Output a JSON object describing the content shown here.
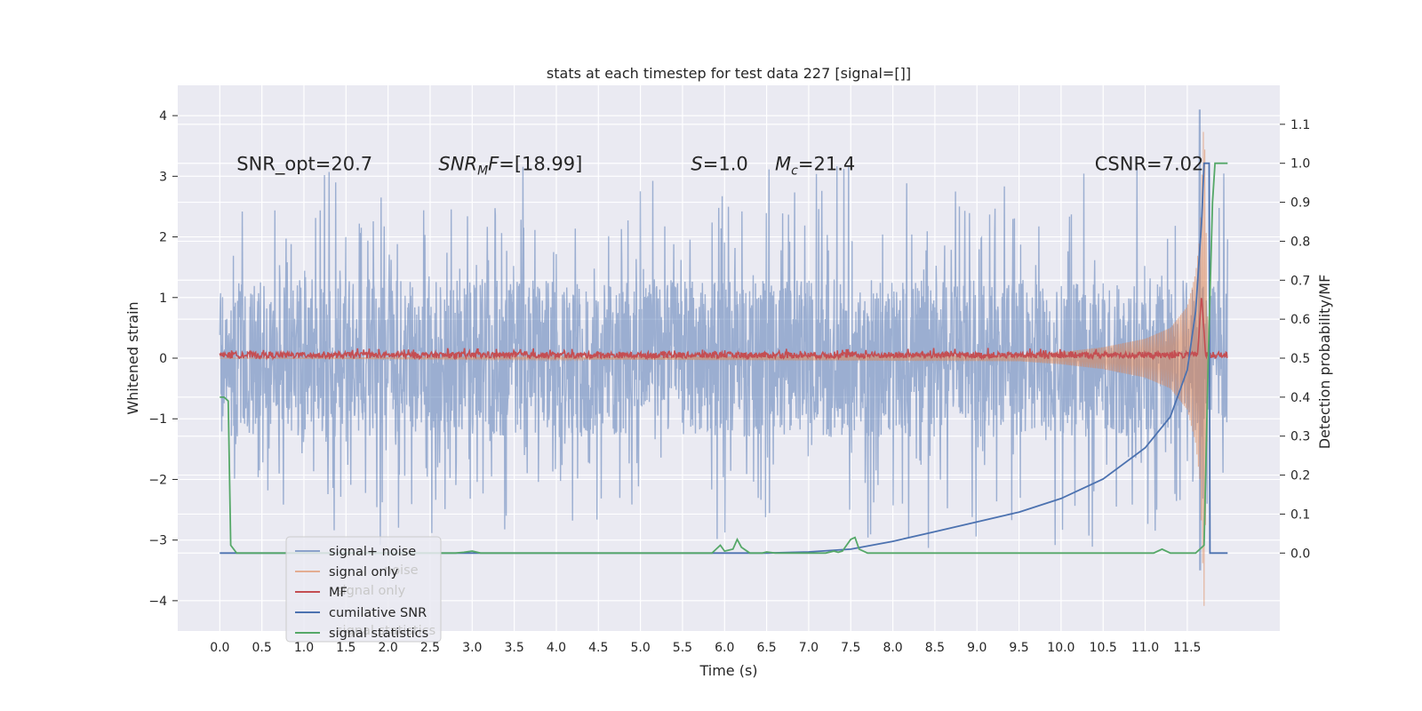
{
  "chart_data": {
    "type": "line",
    "title": "stats at each timestep for test data 227 [signal=[]]",
    "xlabel": "Time (s)",
    "ylabel_left": "Whitened strain",
    "ylabel_right": "Detection probability/MF",
    "xlim": [
      -0.5,
      12.6
    ],
    "ylim_left": [
      -4.5,
      4.5
    ],
    "ylim_right": [
      -0.2,
      1.2
    ],
    "x_ticks": [
      "0.0",
      "0.5",
      "1.0",
      "1.5",
      "2.0",
      "2.5",
      "3.0",
      "3.5",
      "4.0",
      "4.5",
      "5.0",
      "5.5",
      "6.0",
      "6.5",
      "7.0",
      "7.5",
      "8.0",
      "8.5",
      "9.0",
      "9.5",
      "10.0",
      "10.5",
      "11.0",
      "11.5"
    ],
    "y_ticks_left": [
      "−4",
      "−3",
      "−2",
      "−1",
      "0",
      "1",
      "2",
      "3",
      "4"
    ],
    "y_ticks_right": [
      "0.0",
      "0.1",
      "0.2",
      "0.3",
      "0.4",
      "0.5",
      "0.6",
      "0.7",
      "0.8",
      "0.9",
      "1.0",
      "1.1"
    ],
    "grid": true,
    "legend_position": "lower-left",
    "annotations": [
      {
        "text": "SNR_opt=20.7",
        "x": 0.2,
        "y": 3.2
      },
      {
        "text": "SNR",
        "sub": "M",
        "suffix": "F=[18.99]",
        "x": 2.6,
        "y": 3.2
      },
      {
        "text": "S",
        "suffix": "=1.0",
        "x": 5.6,
        "y": 3.2
      },
      {
        "text": "M",
        "sub": "c",
        "suffix": "=21.4",
        "x": 6.6,
        "y": 3.2
      },
      {
        "text": "CSNR=7.02",
        "x": 10.4,
        "y": 3.2
      }
    ],
    "series": [
      {
        "name": "signal+ noise",
        "color": "#4c72b0",
        "axis": "left",
        "note": "noisy whitened strain, range approx -3.5 to 4.1, peak near t=11.65",
        "envelope": {
          "x": [
            0.0,
            11.65,
            11.98
          ],
          "core": 1.3,
          "peak_high": 4.1,
          "peak_low": -3.5
        }
      },
      {
        "name": "signal only",
        "color": "#dd8452",
        "axis": "left",
        "x": [
          9.5,
          10.0,
          10.5,
          11.0,
          11.3,
          11.5,
          11.6,
          11.65,
          11.7,
          11.75
        ],
        "amplitude": [
          0.05,
          0.1,
          0.18,
          0.32,
          0.5,
          0.85,
          1.4,
          2.0,
          4.1,
          0.0
        ]
      },
      {
        "name": "MF",
        "color": "#c44e52",
        "axis": "left",
        "x": [
          0.0,
          11.6,
          11.67,
          11.72,
          11.98
        ],
        "y": [
          0.05,
          0.05,
          1.05,
          0.05,
          0.05
        ]
      },
      {
        "name": "cumilative SNR",
        "color": "#4c72b0",
        "axis": "right",
        "x": [
          0.0,
          6.0,
          6.5,
          7.0,
          7.5,
          8.0,
          8.5,
          9.0,
          9.5,
          10.0,
          10.5,
          11.0,
          11.3,
          11.5,
          11.6,
          11.67,
          11.7,
          11.76,
          11.77,
          11.98
        ],
        "y": [
          0.0,
          0.0,
          0.0,
          0.003,
          0.01,
          0.03,
          0.055,
          0.08,
          0.105,
          0.14,
          0.19,
          0.27,
          0.35,
          0.47,
          0.62,
          0.85,
          1.0,
          1.0,
          0.0,
          0.0
        ]
      },
      {
        "name": "signal statistics",
        "color": "#55a868",
        "axis": "right",
        "x": [
          0.0,
          0.05,
          0.1,
          0.13,
          0.2,
          0.5,
          2.8,
          2.9,
          3.0,
          3.1,
          5.85,
          5.9,
          5.95,
          6.0,
          6.1,
          6.15,
          6.2,
          6.3,
          6.45,
          6.5,
          6.6,
          7.2,
          7.3,
          7.35,
          7.4,
          7.5,
          7.55,
          7.6,
          7.7,
          8.0,
          11.1,
          11.2,
          11.3,
          11.6,
          11.7,
          11.75,
          11.8,
          11.83,
          11.98
        ],
        "y": [
          0.4,
          0.4,
          0.39,
          0.02,
          0.0,
          0.0,
          0.0,
          0.002,
          0.005,
          0.0,
          0.0,
          0.01,
          0.02,
          0.005,
          0.01,
          0.035,
          0.015,
          0.0,
          0.0,
          0.003,
          0.0,
          0.0,
          0.005,
          0.002,
          0.005,
          0.035,
          0.04,
          0.01,
          0.0,
          0.0,
          0.0,
          0.01,
          0.0,
          0.0,
          0.02,
          0.5,
          0.9,
          1.0,
          1.0
        ]
      }
    ],
    "legend": [
      "signal+ noise",
      "signal only",
      "MF",
      "cumilative SNR",
      "signal statistics"
    ],
    "legend_ghost": [
      "noise",
      "signal only",
      "signal statistics"
    ]
  }
}
